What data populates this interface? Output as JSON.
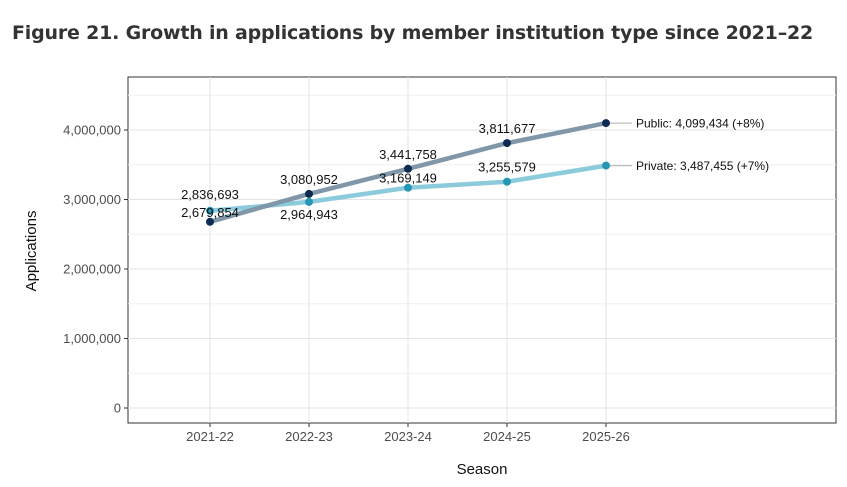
{
  "figure": {
    "title": "Figure 21. Growth in applications by member institution type since 2021–22"
  },
  "chart_data": {
    "type": "line",
    "title": "Figure 21. Growth in applications by member institution type since 2021–22",
    "xlabel": "Season",
    "ylabel": "Applications",
    "categories": [
      "2021-22",
      "2022-23",
      "2023-24",
      "2024-25",
      "2025-26"
    ],
    "ylim": [
      0,
      4600000
    ],
    "yticks": [
      0,
      1000000,
      2000000,
      3000000,
      4000000
    ],
    "ytick_labels": [
      "0",
      "1,000,000",
      "2,000,000",
      "3,000,000",
      "4,000,000"
    ],
    "grid": true,
    "series": [
      {
        "name": "Public",
        "values": [
          2679854,
          3080952,
          3441758,
          3811677,
          4099434
        ],
        "value_labels": [
          "2,679,854",
          "3,080,952",
          "3,441,758",
          "3,811,677",
          ""
        ],
        "end_label": "Public: 4,099,434 (+8%)",
        "line_color": "#7f97a8",
        "point_color": "#0d2b52"
      },
      {
        "name": "Private",
        "values": [
          2836693,
          2964943,
          3169149,
          3255579,
          3487455
        ],
        "value_labels": [
          "2,836,693",
          "2,964,943",
          "3,169,149",
          "3,255,579",
          ""
        ],
        "end_label": "Private: 3,487,455 (+7%)",
        "line_color": "#8ccbdb",
        "point_color": "#2596b3"
      }
    ]
  }
}
